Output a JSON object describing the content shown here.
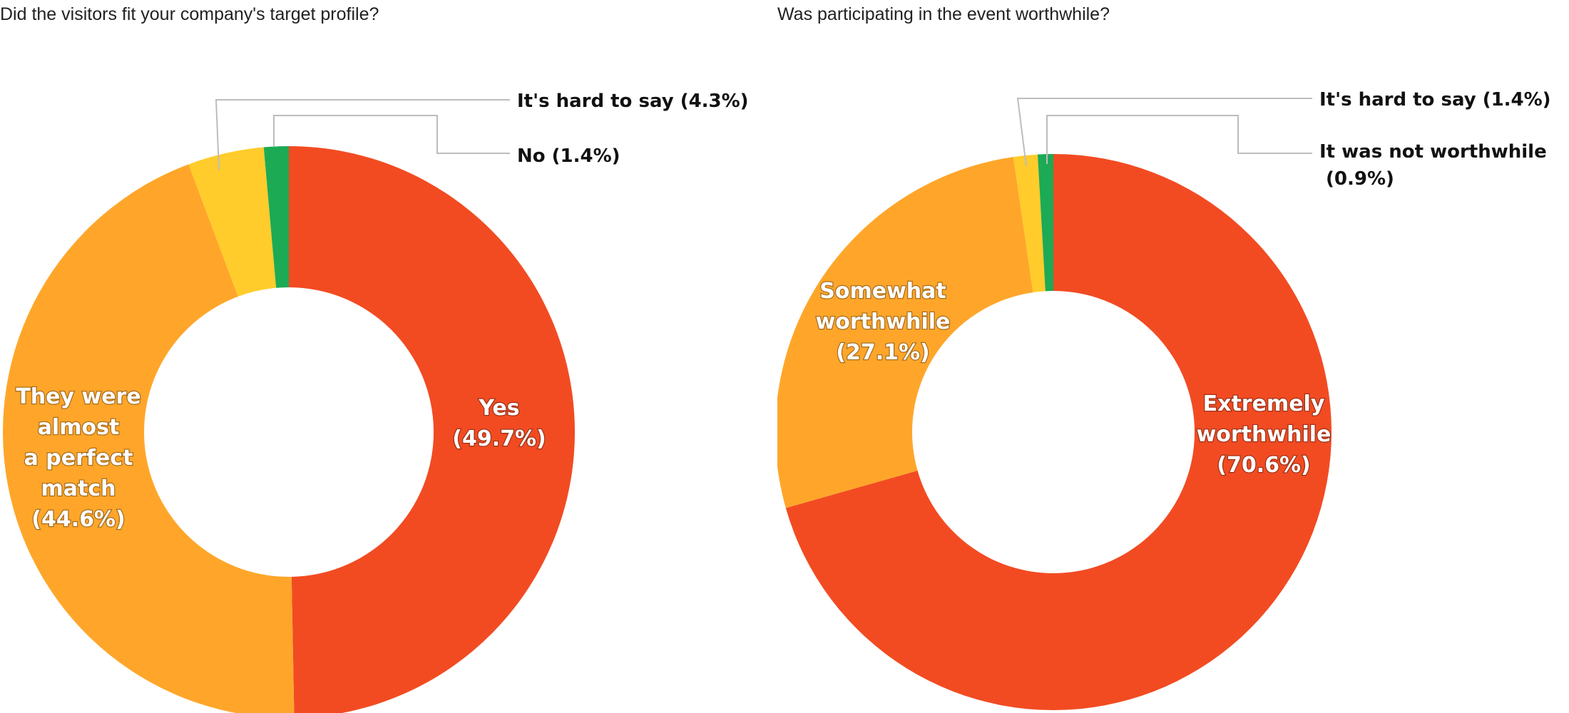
{
  "chart_data": [
    {
      "type": "pie",
      "title": "Did the visitors fit your company's target profile?",
      "slices": [
        {
          "label": "Yes",
          "value": 49.7,
          "color": "#f24b22",
          "label_lines": [
            "Yes",
            "(49.7%)"
          ],
          "placement": "inside"
        },
        {
          "label": "They were almost a perfect match",
          "value": 44.6,
          "color": "#ffa62a",
          "label_lines": [
            "They were",
            "almost",
            "a perfect",
            "match",
            "(44.6%)"
          ],
          "placement": "inside"
        },
        {
          "label": "It's hard to say",
          "value": 4.3,
          "color": "#ffcc2b",
          "label_lines": [
            "It's hard to say (4.3%)"
          ],
          "placement": "outside"
        },
        {
          "label": "No",
          "value": 1.4,
          "color": "#1daa55",
          "label_lines": [
            "No (1.4%)"
          ],
          "placement": "outside"
        }
      ]
    },
    {
      "type": "pie",
      "title": "Was participating in the event worthwhile?",
      "slices": [
        {
          "label": "Extremely worthwhile",
          "value": 70.6,
          "color": "#f24b22",
          "label_lines": [
            "Extremely",
            "worthwhile",
            "(70.6%)"
          ],
          "placement": "inside"
        },
        {
          "label": "Somewhat worthwhile",
          "value": 27.1,
          "color": "#ffa62a",
          "label_lines": [
            "Somewhat",
            "worthwhile",
            "(27.1%)"
          ],
          "placement": "inside"
        },
        {
          "label": "It's hard to say",
          "value": 1.4,
          "color": "#ffcc2b",
          "label_lines": [
            "It's hard to say (1.4%)"
          ],
          "placement": "outside"
        },
        {
          "label": "It was not worthwhile",
          "value": 0.9,
          "color": "#1daa55",
          "label_lines": [
            "It was not worthwhile",
            " (0.9%)"
          ],
          "placement": "outside"
        }
      ]
    }
  ]
}
